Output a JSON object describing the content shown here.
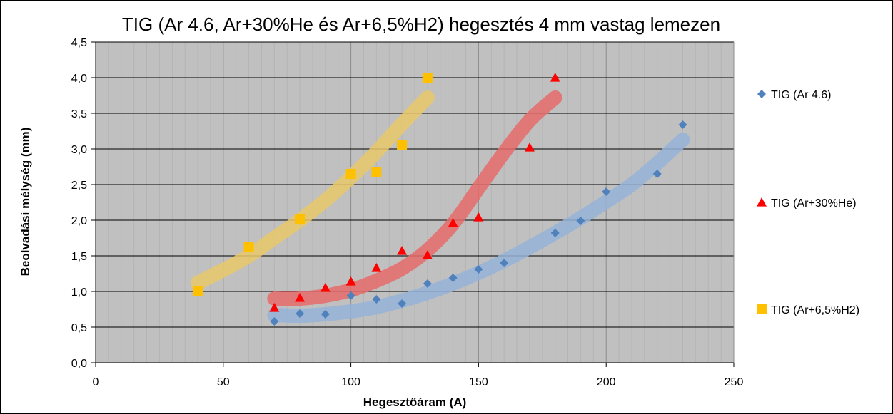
{
  "chart_data": {
    "type": "scatter",
    "title": "TIG (Ar 4.6, Ar+30%He és Ar+6,5%H2) hegesztés 4 mm vastag lemezen",
    "xlabel": "Hegesztőáram (A)",
    "ylabel": "Beolvadási mélység (mm)",
    "xlim": [
      0,
      250
    ],
    "ylim": [
      0,
      4.5
    ],
    "x_ticks": [
      "0",
      "50",
      "100",
      "150",
      "200",
      "250"
    ],
    "y_ticks": [
      "0,0",
      "0,5",
      "1,0",
      "1,5",
      "2,0",
      "2,5",
      "3,0",
      "3,5",
      "4,0",
      "4,5"
    ],
    "grid": true,
    "plot_background": "#c0c0c0",
    "legend_position": "right",
    "series": [
      {
        "name": "TIG (Ar 4.6)",
        "marker": "diamond",
        "color": "#4f81bd",
        "trend_color": "#95b3d7",
        "x": [
          70,
          80,
          90,
          100,
          110,
          120,
          130,
          140,
          150,
          160,
          180,
          190,
          200,
          220,
          230
        ],
        "y": [
          0.58,
          0.69,
          0.68,
          0.94,
          0.89,
          0.83,
          1.11,
          1.19,
          1.31,
          1.4,
          1.82,
          1.99,
          2.4,
          2.65,
          3.34
        ],
        "trend": {
          "x": [
            70,
            80,
            90,
            100,
            110,
            120,
            130,
            140,
            150,
            160,
            170,
            180,
            190,
            200,
            210,
            220,
            230
          ],
          "y": [
            0.67,
            0.66,
            0.68,
            0.72,
            0.78,
            0.87,
            0.98,
            1.11,
            1.26,
            1.43,
            1.62,
            1.82,
            2.03,
            2.26,
            2.5,
            2.8,
            3.13
          ]
        }
      },
      {
        "name": "TIG (Ar+30%He)",
        "marker": "triangle",
        "color": "#ff0000",
        "trend_color": "#e66b6b",
        "x": [
          70,
          80,
          90,
          100,
          110,
          120,
          130,
          140,
          150,
          170,
          180
        ],
        "y": [
          0.77,
          0.91,
          1.05,
          1.14,
          1.33,
          1.57,
          1.51,
          1.96,
          2.04,
          3.02,
          4.0
        ],
        "trend": {
          "x": [
            70,
            80,
            90,
            100,
            110,
            120,
            130,
            140,
            150,
            160,
            170,
            180
          ],
          "y": [
            0.9,
            0.9,
            0.94,
            1.02,
            1.15,
            1.32,
            1.58,
            1.95,
            2.45,
            2.95,
            3.4,
            3.72
          ]
        }
      },
      {
        "name": "TIG (Ar+6,5%H2)",
        "marker": "square",
        "color": "#ffc000",
        "trend_color": "#e8c86a",
        "x": [
          40,
          60,
          80,
          100,
          110,
          120,
          130
        ],
        "y": [
          1.0,
          1.63,
          2.02,
          2.65,
          2.67,
          3.05,
          4.0
        ],
        "trend": {
          "x": [
            40,
            50,
            60,
            70,
            80,
            90,
            100,
            110,
            120,
            130
          ],
          "y": [
            1.12,
            1.3,
            1.5,
            1.75,
            2.0,
            2.28,
            2.6,
            2.96,
            3.35,
            3.72
          ]
        }
      }
    ]
  }
}
